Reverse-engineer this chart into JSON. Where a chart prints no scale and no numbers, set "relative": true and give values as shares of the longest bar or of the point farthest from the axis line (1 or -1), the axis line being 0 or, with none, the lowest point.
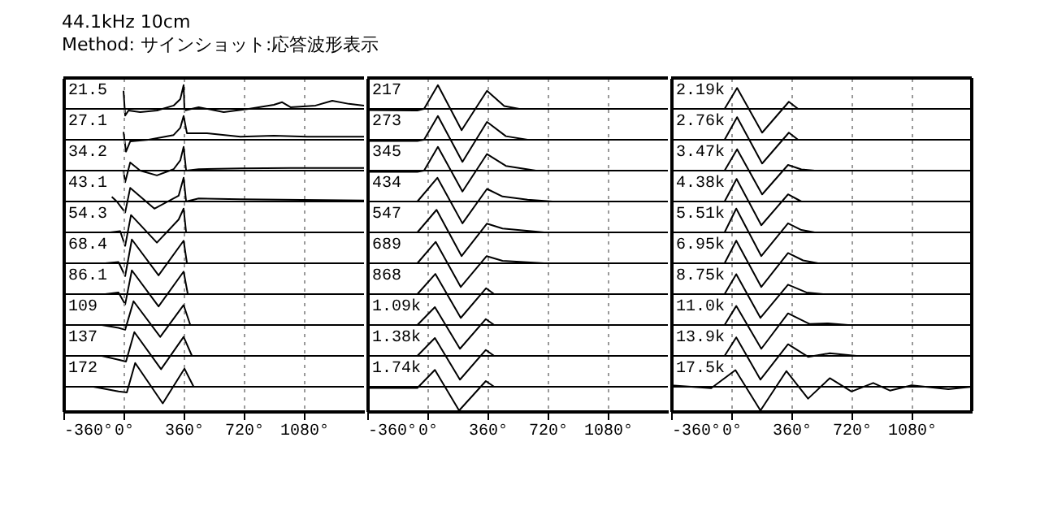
{
  "chart_data": [
    {
      "type": "line",
      "title": "44.1kHz 10cm",
      "subtitle": "Method: サインショット:応答波形表示",
      "relative": true,
      "xlim": [
        -360,
        1440
      ],
      "xticks": [
        {
          "value": -360,
          "label": null
        },
        {
          "value": 0,
          "label": null
        },
        {
          "value": 360,
          "label": null
        },
        {
          "value": 720,
          "label": null
        },
        {
          "value": 1080,
          "label": null
        }
      ],
      "tick_labels": false,
      "grid": "x",
      "series": [
        {
          "name": "21.5",
          "color": "#000000",
          "x": [
            0,
            10,
            30,
            100,
            200,
            300,
            340,
            360,
            365,
            450,
            600,
            750,
            900,
            950,
            1000,
            1150,
            1250,
            1350,
            1440
          ],
          "values": [
            0.76,
            -0.28,
            -0.07,
            -0.14,
            -0.07,
            0.14,
            0.41,
            1,
            -0.07,
            0.07,
            -0.14,
            0,
            0.17,
            0.28,
            0.07,
            0.14,
            0.34,
            0.21,
            0.14
          ]
        }
      ]
    },
    {
      "type": "line",
      "relative": true,
      "xlim": [
        -360,
        1440
      ],
      "xticks": [
        {
          "value": -360,
          "label": null
        },
        {
          "value": 0,
          "label": null
        },
        {
          "value": 360,
          "label": null
        },
        {
          "value": 720,
          "label": null
        },
        {
          "value": 1080,
          "label": null
        }
      ],
      "tick_labels": false,
      "grid": "x",
      "series": [
        {
          "name": "217",
          "color": "#000000",
          "x": [
            -360,
            -60,
            -20,
            63,
            205,
            357,
            460,
            550,
            1440
          ],
          "values": [
            -0.05,
            -0.07,
            0,
            1,
            -0.9,
            0.76,
            0.12,
            0,
            0
          ]
        }
      ]
    },
    {
      "type": "line",
      "relative": true,
      "xlim": [
        -360,
        1440
      ],
      "xticks": [
        {
          "value": -360,
          "label": null
        },
        {
          "value": 0,
          "label": null
        },
        {
          "value": 360,
          "label": null
        },
        {
          "value": 720,
          "label": null
        },
        {
          "value": 1080,
          "label": null
        }
      ],
      "tick_labels": false,
      "grid": "x",
      "series": [
        {
          "name": "2.19k",
          "color": "#000000",
          "x": [
            -360,
            -40,
            35,
            185,
            345,
            400,
            1440
          ],
          "values": [
            0,
            0,
            0.88,
            -1,
            0.3,
            0,
            0
          ]
        }
      ]
    },
    {
      "type": "line",
      "relative": true,
      "xlim": [
        -360,
        1440
      ],
      "xticks": [
        {
          "value": -360,
          "label": null
        },
        {
          "value": 0,
          "label": null
        },
        {
          "value": 360,
          "label": null
        },
        {
          "value": 720,
          "label": null
        },
        {
          "value": 1080,
          "label": null
        }
      ],
      "tick_labels": false,
      "grid": "x",
      "series": [
        {
          "name": "27.1",
          "color": "#000000",
          "x": [
            0,
            15,
            40,
            150,
            300,
            340,
            360,
            380,
            500,
            700,
            900,
            1100,
            1440
          ],
          "values": [
            0.33,
            -0.5,
            -0.07,
            0,
            0.2,
            0.5,
            1,
            0.27,
            0.27,
            0.13,
            0.17,
            0.13,
            0.13
          ]
        }
      ]
    },
    {
      "type": "line",
      "relative": true,
      "xlim": [
        -360,
        1440
      ],
      "xticks": [
        {
          "value": -360,
          "label": null
        },
        {
          "value": 0,
          "label": null
        },
        {
          "value": 360,
          "label": null
        },
        {
          "value": 720,
          "label": null
        },
        {
          "value": 1080,
          "label": null
        }
      ],
      "tick_labels": false,
      "grid": "x",
      "series": [
        {
          "name": "273",
          "color": "#000000",
          "x": [
            -360,
            -60,
            -20,
            63,
            210,
            357,
            470,
            600,
            1440
          ],
          "values": [
            -0.05,
            -0.05,
            0,
            1,
            -0.93,
            0.75,
            0.15,
            0,
            0
          ]
        }
      ]
    },
    {
      "type": "line",
      "relative": true,
      "xlim": [
        -360,
        1440
      ],
      "xticks": [
        {
          "value": -360,
          "label": null
        },
        {
          "value": 0,
          "label": null
        },
        {
          "value": 360,
          "label": null
        },
        {
          "value": 720,
          "label": null
        },
        {
          "value": 1080,
          "label": null
        }
      ],
      "tick_labels": false,
      "grid": "x",
      "series": [
        {
          "name": "2.76k",
          "color": "#000000",
          "x": [
            -360,
            -40,
            35,
            185,
            345,
            400,
            1440
          ],
          "values": [
            0,
            0,
            0.95,
            -1,
            0.3,
            0,
            0
          ]
        }
      ]
    },
    {
      "type": "line",
      "relative": true,
      "xlim": [
        -360,
        1440
      ],
      "xticks": [
        {
          "value": -360,
          "label": null
        },
        {
          "value": 0,
          "label": null
        },
        {
          "value": 360,
          "label": null
        },
        {
          "value": 720,
          "label": null
        },
        {
          "value": 1080,
          "label": null
        }
      ],
      "tick_labels": false,
      "grid": "x",
      "series": [
        {
          "name": "34.2",
          "color": "#000000",
          "x": [
            0,
            10,
            40,
            100,
            200,
            300,
            340,
            360,
            375,
            450,
            700,
            1000,
            1440
          ],
          "values": [
            0,
            -0.49,
            0.34,
            0,
            -0.2,
            0.06,
            0.43,
            1,
            0,
            0.06,
            0.09,
            0.11,
            0.11
          ]
        }
      ]
    },
    {
      "type": "line",
      "relative": true,
      "xlim": [
        -360,
        1440
      ],
      "xticks": [
        {
          "value": -360,
          "label": null
        },
        {
          "value": 0,
          "label": null
        },
        {
          "value": 360,
          "label": null
        },
        {
          "value": 720,
          "label": null
        },
        {
          "value": 1080,
          "label": null
        }
      ],
      "tick_labels": false,
      "grid": "x",
      "series": [
        {
          "name": "345",
          "color": "#000000",
          "x": [
            -360,
            -60,
            -20,
            63,
            210,
            357,
            470,
            650,
            1440
          ],
          "values": [
            -0.05,
            -0.05,
            0,
            1,
            -0.88,
            0.7,
            0.2,
            0,
            0
          ]
        }
      ]
    },
    {
      "type": "line",
      "relative": true,
      "xlim": [
        -360,
        1440
      ],
      "xticks": [
        {
          "value": -360,
          "label": null
        },
        {
          "value": 0,
          "label": null
        },
        {
          "value": 360,
          "label": null
        },
        {
          "value": 720,
          "label": null
        },
        {
          "value": 1080,
          "label": null
        }
      ],
      "tick_labels": false,
      "grid": "x",
      "series": [
        {
          "name": "3.47k",
          "color": "#000000",
          "x": [
            -360,
            -40,
            35,
            185,
            340,
            420,
            500,
            1440
          ],
          "values": [
            0,
            0,
            0.9,
            -1,
            0.24,
            0.05,
            0,
            0
          ]
        }
      ]
    },
    {
      "type": "line",
      "relative": true,
      "xlim": [
        -360,
        1440
      ],
      "xticks": [
        {
          "value": -360,
          "label": null
        },
        {
          "value": 0,
          "label": null
        },
        {
          "value": 360,
          "label": null
        },
        {
          "value": 720,
          "label": null
        },
        {
          "value": 1080,
          "label": null
        }
      ],
      "tick_labels": false,
      "grid": "x",
      "series": [
        {
          "name": "43.1",
          "color": "#000000",
          "x": [
            -70,
            -40,
            10,
            40,
            185,
            330,
            360,
            375,
            450,
            700,
            1440
          ],
          "values": [
            0.2,
            0,
            -0.46,
            0.57,
            -0.3,
            0.24,
            1,
            0,
            0.13,
            0.09,
            0.04
          ]
        }
      ]
    },
    {
      "type": "line",
      "relative": true,
      "xlim": [
        -360,
        1440
      ],
      "xticks": [
        {
          "value": -360,
          "label": null
        },
        {
          "value": 0,
          "label": null
        },
        {
          "value": 360,
          "label": null
        },
        {
          "value": 720,
          "label": null
        },
        {
          "value": 1080,
          "label": null
        }
      ],
      "tick_labels": false,
      "grid": "x",
      "series": [
        {
          "name": "434",
          "color": "#000000",
          "x": [
            -360,
            -60,
            60,
            210,
            357,
            450,
            600,
            750,
            1440
          ],
          "values": [
            0,
            0,
            1,
            -0.92,
            0.53,
            0.21,
            0.08,
            0,
            0
          ]
        }
      ]
    },
    {
      "type": "line",
      "relative": true,
      "xlim": [
        -360,
        1440
      ],
      "xticks": [
        {
          "value": -360,
          "label": null
        },
        {
          "value": 0,
          "label": null
        },
        {
          "value": 360,
          "label": null
        },
        {
          "value": 720,
          "label": null
        },
        {
          "value": 1080,
          "label": null
        }
      ],
      "tick_labels": false,
      "grid": "x",
      "series": [
        {
          "name": "4.38k",
          "color": "#000000",
          "x": [
            -360,
            -40,
            32,
            180,
            340,
            420,
            1440
          ],
          "values": [
            0,
            0,
            0.95,
            -1,
            0.3,
            0,
            0
          ]
        }
      ]
    },
    {
      "type": "line",
      "relative": true,
      "xlim": [
        -360,
        1440
      ],
      "xticks": [
        {
          "value": -360,
          "label": null
        },
        {
          "value": 0,
          "label": null
        },
        {
          "value": 360,
          "label": null
        },
        {
          "value": 720,
          "label": null
        },
        {
          "value": 1080,
          "label": null
        }
      ],
      "tick_labels": false,
      "grid": "x",
      "series": [
        {
          "name": "54.3",
          "color": "#000000",
          "x": [
            -80,
            -20,
            10,
            45,
            200,
            330,
            360,
            375,
            1440
          ],
          "values": [
            0,
            0.05,
            -0.57,
            0.73,
            -0.43,
            0.54,
            1,
            0,
            0
          ]
        }
      ]
    },
    {
      "type": "line",
      "relative": true,
      "xlim": [
        -360,
        1440
      ],
      "xticks": [
        {
          "value": -360,
          "label": null
        },
        {
          "value": 0,
          "label": null
        },
        {
          "value": 360,
          "label": null
        },
        {
          "value": 720,
          "label": null
        },
        {
          "value": 1080,
          "label": null
        }
      ],
      "tick_labels": false,
      "grid": "x",
      "series": [
        {
          "name": "547",
          "color": "#000000",
          "x": [
            -360,
            -60,
            55,
            205,
            357,
            450,
            700,
            1440
          ],
          "values": [
            0,
            0,
            0.95,
            -1,
            0.37,
            0.16,
            0,
            0
          ]
        }
      ]
    },
    {
      "type": "line",
      "relative": true,
      "xlim": [
        -360,
        1440
      ],
      "xticks": [
        {
          "value": -360,
          "label": null
        },
        {
          "value": 0,
          "label": null
        },
        {
          "value": 360,
          "label": null
        },
        {
          "value": 720,
          "label": null
        },
        {
          "value": 1080,
          "label": null
        }
      ],
      "tick_labels": false,
      "grid": "x",
      "series": [
        {
          "name": "5.51k",
          "color": "#000000",
          "x": [
            -360,
            -40,
            30,
            180,
            340,
            420,
            500,
            1440
          ],
          "values": [
            0,
            0,
            1,
            -1,
            0.38,
            0.1,
            0,
            0
          ]
        }
      ]
    },
    {
      "type": "line",
      "relative": true,
      "xlim": [
        -360,
        1440
      ],
      "xticks": [
        {
          "value": -360,
          "label": null
        },
        {
          "value": 0,
          "label": null
        },
        {
          "value": 360,
          "label": null
        },
        {
          "value": 720,
          "label": null
        },
        {
          "value": 1080,
          "label": null
        }
      ],
      "tick_labels": false,
      "grid": "x",
      "series": [
        {
          "name": "68.4",
          "color": "#000000",
          "x": [
            -110,
            -30,
            10,
            50,
            210,
            360,
            380,
            1440
          ],
          "values": [
            0,
            0.05,
            -0.54,
            1,
            -0.51,
            0.95,
            0,
            0
          ]
        }
      ]
    },
    {
      "type": "line",
      "relative": true,
      "xlim": [
        -360,
        1440
      ],
      "xticks": [
        {
          "value": -360,
          "label": null
        },
        {
          "value": 0,
          "label": null
        },
        {
          "value": 360,
          "label": null
        },
        {
          "value": 720,
          "label": null
        },
        {
          "value": 1080,
          "label": null
        }
      ],
      "tick_labels": false,
      "grid": "x",
      "series": [
        {
          "name": "689",
          "color": "#000000",
          "x": [
            -360,
            -60,
            50,
            200,
            355,
            450,
            700,
            1440
          ],
          "values": [
            0,
            0,
            0.9,
            -1,
            0.3,
            0.1,
            0,
            0
          ]
        }
      ]
    },
    {
      "type": "line",
      "relative": true,
      "xlim": [
        -360,
        1440
      ],
      "xticks": [
        {
          "value": -360,
          "label": null
        },
        {
          "value": 0,
          "label": null
        },
        {
          "value": 360,
          "label": null
        },
        {
          "value": 720,
          "label": null
        },
        {
          "value": 1080,
          "label": null
        }
      ],
      "tick_labels": false,
      "grid": "x",
      "series": [
        {
          "name": "6.95k",
          "color": "#000000",
          "x": [
            -360,
            -40,
            30,
            180,
            340,
            430,
            520,
            1440
          ],
          "values": [
            0,
            0,
            0.95,
            -1,
            0.43,
            0.12,
            0,
            0
          ]
        }
      ]
    },
    {
      "type": "line",
      "relative": true,
      "xlim": [
        -360,
        1440
      ],
      "xticks": [
        {
          "value": -360,
          "label": null
        },
        {
          "value": 0,
          "label": null
        },
        {
          "value": 360,
          "label": null
        },
        {
          "value": 720,
          "label": null
        },
        {
          "value": 1080,
          "label": null
        }
      ],
      "tick_labels": false,
      "grid": "x",
      "series": [
        {
          "name": "86.1",
          "color": "#000000",
          "x": [
            -110,
            -30,
            10,
            50,
            210,
            360,
            385,
            1440
          ],
          "values": [
            0,
            0.07,
            -0.43,
            1,
            -0.52,
            0.95,
            0,
            0
          ]
        }
      ]
    },
    {
      "type": "line",
      "relative": true,
      "xlim": [
        -360,
        1440
      ],
      "xticks": [
        {
          "value": -360,
          "label": null
        },
        {
          "value": 0,
          "label": null
        },
        {
          "value": 360,
          "label": null
        },
        {
          "value": 720,
          "label": null
        },
        {
          "value": 1080,
          "label": null
        }
      ],
      "tick_labels": false,
      "grid": "x",
      "series": [
        {
          "name": "868",
          "color": "#000000",
          "x": [
            -360,
            -60,
            48,
            200,
            352,
            400,
            1440
          ],
          "values": [
            0,
            0,
            0.85,
            -1,
            0.25,
            0,
            0
          ]
        }
      ]
    },
    {
      "type": "line",
      "relative": true,
      "xlim": [
        -360,
        1440
      ],
      "xticks": [
        {
          "value": -360,
          "label": null
        },
        {
          "value": 0,
          "label": null
        },
        {
          "value": 360,
          "label": null
        },
        {
          "value": 720,
          "label": null
        },
        {
          "value": 1080,
          "label": null
        }
      ],
      "tick_labels": false,
      "grid": "x",
      "series": [
        {
          "name": "8.75k",
          "color": "#000000",
          "x": [
            -360,
            -40,
            30,
            175,
            340,
            450,
            550,
            1440
          ],
          "values": [
            0,
            0,
            0.84,
            -1,
            0.4,
            0.07,
            0,
            0
          ]
        }
      ]
    },
    {
      "type": "line",
      "relative": true,
      "xlim": [
        -360,
        1440
      ],
      "xticks": [
        {
          "value": -360,
          "label": null
        },
        {
          "value": 0,
          "label": null
        },
        {
          "value": 360,
          "label": null
        },
        {
          "value": 720,
          "label": null
        },
        {
          "value": 1080,
          "label": null
        }
      ],
      "tick_labels": false,
      "grid": "x",
      "series": [
        {
          "name": "109",
          "color": "#000000",
          "x": [
            -130,
            -30,
            10,
            60,
            220,
            360,
            400,
            1440
          ],
          "values": [
            0,
            -0.12,
            -0.2,
            1,
            -0.5,
            0.84,
            0,
            0
          ]
        }
      ]
    },
    {
      "type": "line",
      "relative": true,
      "xlim": [
        -360,
        1440
      ],
      "xticks": [
        {
          "value": -360,
          "label": null
        },
        {
          "value": 0,
          "label": null
        },
        {
          "value": 360,
          "label": null
        },
        {
          "value": 720,
          "label": null
        },
        {
          "value": 1080,
          "label": null
        }
      ],
      "tick_labels": false,
      "grid": "x",
      "series": [
        {
          "name": "1.09k",
          "color": "#000000",
          "x": [
            -360,
            -60,
            45,
            195,
            350,
            400,
            1440
          ],
          "values": [
            0,
            0,
            0.75,
            -1,
            0.25,
            0,
            0
          ]
        }
      ]
    },
    {
      "type": "line",
      "relative": true,
      "xlim": [
        -360,
        1440
      ],
      "xticks": [
        {
          "value": -360,
          "label": null
        },
        {
          "value": 0,
          "label": null
        },
        {
          "value": 360,
          "label": null
        },
        {
          "value": 720,
          "label": null
        },
        {
          "value": 1080,
          "label": null
        }
      ],
      "tick_labels": false,
      "grid": "x",
      "series": [
        {
          "name": "11.0k",
          "color": "#000000",
          "x": [
            -360,
            -40,
            30,
            180,
            340,
            470,
            580,
            700,
            1440
          ],
          "values": [
            0,
            0,
            0.8,
            -1,
            0.49,
            0.04,
            0.07,
            0,
            0
          ]
        }
      ]
    },
    {
      "type": "line",
      "relative": true,
      "xlim": [
        -360,
        1440
      ],
      "xticks": [
        {
          "value": -360,
          "label": null
        },
        {
          "value": 0,
          "label": null
        },
        {
          "value": 360,
          "label": null
        },
        {
          "value": 720,
          "label": null
        },
        {
          "value": 1080,
          "label": null
        }
      ],
      "tick_labels": false,
      "grid": "x",
      "series": [
        {
          "name": "137",
          "color": "#000000",
          "x": [
            -130,
            -30,
            15,
            65,
            225,
            360,
            410,
            1440
          ],
          "values": [
            0,
            -0.16,
            -0.24,
            1,
            -0.56,
            0.8,
            0,
            0
          ]
        }
      ]
    },
    {
      "type": "line",
      "relative": true,
      "xlim": [
        -360,
        1440
      ],
      "xticks": [
        {
          "value": -360,
          "label": null
        },
        {
          "value": 0,
          "label": null
        },
        {
          "value": 360,
          "label": null
        },
        {
          "value": 720,
          "label": null
        },
        {
          "value": 1080,
          "label": null
        }
      ],
      "tick_labels": false,
      "grid": "x",
      "series": [
        {
          "name": "1.38k",
          "color": "#000000",
          "x": [
            -360,
            -60,
            45,
            195,
            350,
            400,
            1440
          ],
          "values": [
            0,
            0,
            0.75,
            -1,
            0.25,
            0,
            0
          ]
        }
      ]
    },
    {
      "type": "line",
      "relative": true,
      "xlim": [
        -360,
        1440
      ],
      "xticks": [
        {
          "value": -360,
          "label": null
        },
        {
          "value": 0,
          "label": null
        },
        {
          "value": 360,
          "label": null
        },
        {
          "value": 720,
          "label": null
        },
        {
          "value": 1080,
          "label": null
        }
      ],
      "tick_labels": false,
      "grid": "x",
      "series": [
        {
          "name": "13.9k",
          "color": "#000000",
          "x": [
            -360,
            -40,
            30,
            175,
            340,
            460,
            590,
            750,
            1440
          ],
          "values": [
            0,
            0,
            0.78,
            -1,
            0.49,
            -0.04,
            0.11,
            0,
            0
          ]
        }
      ]
    },
    {
      "type": "line",
      "relative": true,
      "xlim": [
        -360,
        1440
      ],
      "xticks": [
        {
          "value": -360,
          "label": "-360°"
        },
        {
          "value": 0,
          "label": "0°"
        },
        {
          "value": 360,
          "label": "360°"
        },
        {
          "value": 720,
          "label": "720°"
        },
        {
          "value": 1080,
          "label": "1080°"
        }
      ],
      "tick_labels": "x",
      "grid": "x",
      "series": [
        {
          "name": "172",
          "color": "#000000",
          "x": [
            -180,
            -30,
            20,
            70,
            235,
            365,
            420,
            1440
          ],
          "values": [
            0,
            -0.2,
            -0.24,
            1,
            -0.7,
            0.76,
            0,
            0
          ]
        }
      ]
    },
    {
      "type": "line",
      "relative": true,
      "xlim": [
        -360,
        1440
      ],
      "xticks": [
        {
          "value": -360,
          "label": "-360°"
        },
        {
          "value": 0,
          "label": "0°"
        },
        {
          "value": 360,
          "label": "360°"
        },
        {
          "value": 720,
          "label": "720°"
        },
        {
          "value": 1080,
          "label": "1080°"
        }
      ],
      "tick_labels": "x",
      "grid": "x",
      "series": [
        {
          "name": "1.74k",
          "color": "#000000",
          "x": [
            -360,
            -60,
            45,
            190,
            350,
            400,
            1440
          ],
          "values": [
            -0.05,
            -0.05,
            0.71,
            -1,
            0.24,
            0,
            0
          ]
        }
      ]
    },
    {
      "type": "line",
      "relative": true,
      "xlim": [
        -360,
        1440
      ],
      "xticks": [
        {
          "value": -360,
          "label": "-360°"
        },
        {
          "value": 0,
          "label": "0°"
        },
        {
          "value": 360,
          "label": "360°"
        },
        {
          "value": 720,
          "label": "720°"
        },
        {
          "value": 1080,
          "label": "1080°"
        }
      ],
      "tick_labels": "x",
      "grid": "x",
      "series": [
        {
          "name": "17.5k",
          "color": "#000000",
          "x": [
            -360,
            -120,
            25,
            175,
            330,
            460,
            590,
            720,
            850,
            950,
            1080,
            1300,
            1440
          ],
          "values": [
            0.06,
            -0.06,
            0.7,
            -1,
            0.66,
            -0.5,
            0.36,
            -0.2,
            0.16,
            -0.16,
            0.06,
            -0.1,
            0
          ]
        }
      ]
    }
  ]
}
